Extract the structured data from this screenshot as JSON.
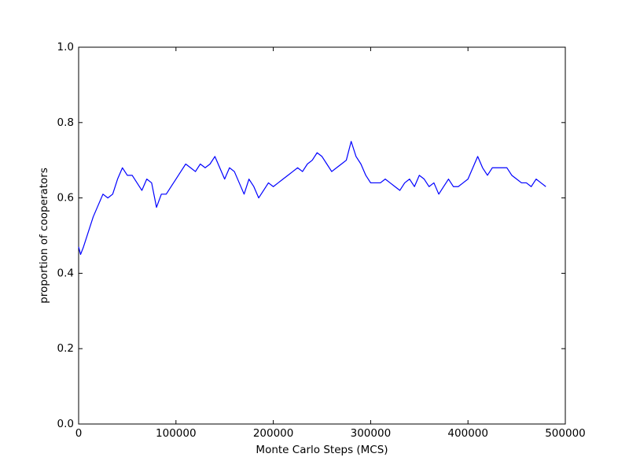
{
  "chart_data": {
    "type": "line",
    "xlabel": "Monte Carlo Steps (MCS)",
    "ylabel": "proportion of cooperators",
    "xlim": [
      0,
      500000
    ],
    "ylim": [
      0,
      1
    ],
    "xticks": [
      0,
      100000,
      200000,
      300000,
      400000,
      500000
    ],
    "yticks": [
      {
        "value": 0,
        "label": "0.0"
      },
      0.2,
      0.4,
      0.6,
      0.8,
      {
        "value": 1,
        "label": "1.0"
      }
    ],
    "series": [
      {
        "color": "#0000ff",
        "x": [
          0,
          2000,
          5000,
          10000,
          15000,
          20000,
          25000,
          30000,
          35000,
          40000,
          45000,
          50000,
          55000,
          60000,
          65000,
          70000,
          75000,
          80000,
          85000,
          90000,
          95000,
          100000,
          105000,
          110000,
          115000,
          120000,
          125000,
          130000,
          135000,
          140000,
          145000,
          150000,
          155000,
          160000,
          165000,
          170000,
          175000,
          180000,
          185000,
          190000,
          195000,
          200000,
          205000,
          210000,
          215000,
          220000,
          225000,
          230000,
          235000,
          240000,
          245000,
          250000,
          255000,
          260000,
          265000,
          270000,
          275000,
          280000,
          285000,
          290000,
          295000,
          300000,
          305000,
          310000,
          315000,
          320000,
          325000,
          330000,
          335000,
          340000,
          345000,
          350000,
          355000,
          360000,
          365000,
          370000,
          375000,
          380000,
          385000,
          390000,
          395000,
          400000,
          405000,
          410000,
          415000,
          420000,
          425000,
          430000,
          435000,
          440000,
          445000,
          450000,
          455000,
          460000,
          465000,
          470000,
          475000,
          480000
        ],
        "values": [
          0.47,
          0.45,
          0.47,
          0.51,
          0.55,
          0.58,
          0.61,
          0.6,
          0.61,
          0.65,
          0.68,
          0.66,
          0.66,
          0.64,
          0.62,
          0.65,
          0.64,
          0.575,
          0.61,
          0.61,
          0.63,
          0.65,
          0.67,
          0.69,
          0.68,
          0.67,
          0.69,
          0.68,
          0.69,
          0.71,
          0.68,
          0.65,
          0.68,
          0.67,
          0.64,
          0.61,
          0.65,
          0.63,
          0.6,
          0.62,
          0.64,
          0.63,
          0.64,
          0.65,
          0.66,
          0.67,
          0.68,
          0.67,
          0.69,
          0.7,
          0.72,
          0.71,
          0.69,
          0.67,
          0.68,
          0.69,
          0.7,
          0.75,
          0.71,
          0.69,
          0.66,
          0.64,
          0.64,
          0.64,
          0.65,
          0.64,
          0.63,
          0.62,
          0.64,
          0.65,
          0.63,
          0.66,
          0.65,
          0.63,
          0.64,
          0.61,
          0.63,
          0.65,
          0.63,
          0.63,
          0.64,
          0.65,
          0.68,
          0.71,
          0.68,
          0.66,
          0.68,
          0.68,
          0.68,
          0.68,
          0.66,
          0.65,
          0.64,
          0.64,
          0.63,
          0.65,
          0.64,
          0.63
        ]
      }
    ]
  }
}
